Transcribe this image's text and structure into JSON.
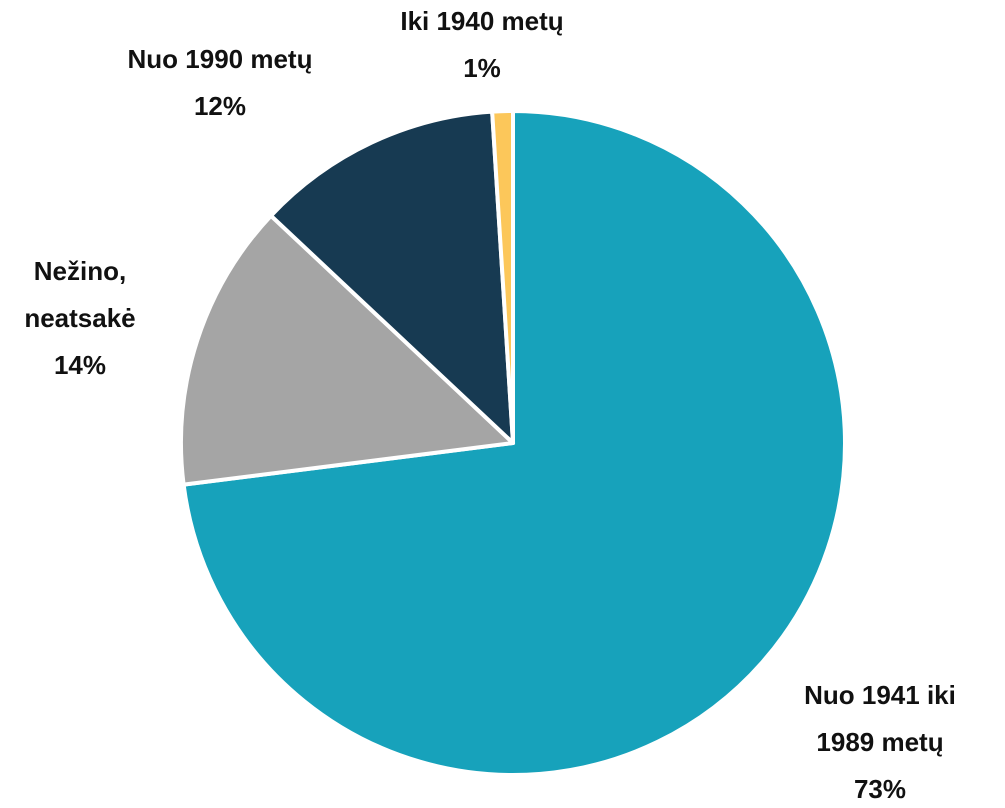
{
  "chart_data": {
    "type": "pie",
    "categories": [
      "Nuo 1941 iki 1989 metų",
      "Nežino, neatsakė",
      "Nuo 1990 metų",
      "Iki 1940 metų"
    ],
    "values": [
      73,
      14,
      12,
      1
    ],
    "value_labels": [
      "73%",
      "14%",
      "12%",
      "1%"
    ],
    "colors": [
      "#17a2bb",
      "#a5a5a5",
      "#173a52",
      "#fcc75a"
    ]
  }
}
